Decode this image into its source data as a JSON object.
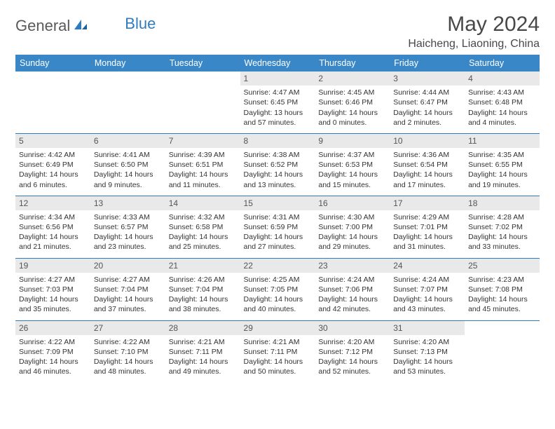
{
  "brand": {
    "part1": "General",
    "part2": "Blue"
  },
  "title": "May 2024",
  "location": "Haicheng, Liaoning, China",
  "colors": {
    "header_bg": "#3a87c8",
    "header_text": "#ffffff",
    "daynum_bg": "#e9e9e9",
    "row_border": "#2f7bc0",
    "logo_blue": "#2f7bc0",
    "body_text": "#333333"
  },
  "daysOfWeek": [
    "Sunday",
    "Monday",
    "Tuesday",
    "Wednesday",
    "Thursday",
    "Friday",
    "Saturday"
  ],
  "table_style": {
    "header_fontsize": 12.5,
    "cell_fontsize": 10.5,
    "columns": 7,
    "rows": 5
  },
  "weeks": [
    [
      {
        "n": "",
        "sr": "",
        "ss": "",
        "dl": ""
      },
      {
        "n": "",
        "sr": "",
        "ss": "",
        "dl": ""
      },
      {
        "n": "",
        "sr": "",
        "ss": "",
        "dl": ""
      },
      {
        "n": "1",
        "sr": "Sunrise: 4:47 AM",
        "ss": "Sunset: 6:45 PM",
        "dl": "Daylight: 13 hours and 57 minutes."
      },
      {
        "n": "2",
        "sr": "Sunrise: 4:45 AM",
        "ss": "Sunset: 6:46 PM",
        "dl": "Daylight: 14 hours and 0 minutes."
      },
      {
        "n": "3",
        "sr": "Sunrise: 4:44 AM",
        "ss": "Sunset: 6:47 PM",
        "dl": "Daylight: 14 hours and 2 minutes."
      },
      {
        "n": "4",
        "sr": "Sunrise: 4:43 AM",
        "ss": "Sunset: 6:48 PM",
        "dl": "Daylight: 14 hours and 4 minutes."
      }
    ],
    [
      {
        "n": "5",
        "sr": "Sunrise: 4:42 AM",
        "ss": "Sunset: 6:49 PM",
        "dl": "Daylight: 14 hours and 6 minutes."
      },
      {
        "n": "6",
        "sr": "Sunrise: 4:41 AM",
        "ss": "Sunset: 6:50 PM",
        "dl": "Daylight: 14 hours and 9 minutes."
      },
      {
        "n": "7",
        "sr": "Sunrise: 4:39 AM",
        "ss": "Sunset: 6:51 PM",
        "dl": "Daylight: 14 hours and 11 minutes."
      },
      {
        "n": "8",
        "sr": "Sunrise: 4:38 AM",
        "ss": "Sunset: 6:52 PM",
        "dl": "Daylight: 14 hours and 13 minutes."
      },
      {
        "n": "9",
        "sr": "Sunrise: 4:37 AM",
        "ss": "Sunset: 6:53 PM",
        "dl": "Daylight: 14 hours and 15 minutes."
      },
      {
        "n": "10",
        "sr": "Sunrise: 4:36 AM",
        "ss": "Sunset: 6:54 PM",
        "dl": "Daylight: 14 hours and 17 minutes."
      },
      {
        "n": "11",
        "sr": "Sunrise: 4:35 AM",
        "ss": "Sunset: 6:55 PM",
        "dl": "Daylight: 14 hours and 19 minutes."
      }
    ],
    [
      {
        "n": "12",
        "sr": "Sunrise: 4:34 AM",
        "ss": "Sunset: 6:56 PM",
        "dl": "Daylight: 14 hours and 21 minutes."
      },
      {
        "n": "13",
        "sr": "Sunrise: 4:33 AM",
        "ss": "Sunset: 6:57 PM",
        "dl": "Daylight: 14 hours and 23 minutes."
      },
      {
        "n": "14",
        "sr": "Sunrise: 4:32 AM",
        "ss": "Sunset: 6:58 PM",
        "dl": "Daylight: 14 hours and 25 minutes."
      },
      {
        "n": "15",
        "sr": "Sunrise: 4:31 AM",
        "ss": "Sunset: 6:59 PM",
        "dl": "Daylight: 14 hours and 27 minutes."
      },
      {
        "n": "16",
        "sr": "Sunrise: 4:30 AM",
        "ss": "Sunset: 7:00 PM",
        "dl": "Daylight: 14 hours and 29 minutes."
      },
      {
        "n": "17",
        "sr": "Sunrise: 4:29 AM",
        "ss": "Sunset: 7:01 PM",
        "dl": "Daylight: 14 hours and 31 minutes."
      },
      {
        "n": "18",
        "sr": "Sunrise: 4:28 AM",
        "ss": "Sunset: 7:02 PM",
        "dl": "Daylight: 14 hours and 33 minutes."
      }
    ],
    [
      {
        "n": "19",
        "sr": "Sunrise: 4:27 AM",
        "ss": "Sunset: 7:03 PM",
        "dl": "Daylight: 14 hours and 35 minutes."
      },
      {
        "n": "20",
        "sr": "Sunrise: 4:27 AM",
        "ss": "Sunset: 7:04 PM",
        "dl": "Daylight: 14 hours and 37 minutes."
      },
      {
        "n": "21",
        "sr": "Sunrise: 4:26 AM",
        "ss": "Sunset: 7:04 PM",
        "dl": "Daylight: 14 hours and 38 minutes."
      },
      {
        "n": "22",
        "sr": "Sunrise: 4:25 AM",
        "ss": "Sunset: 7:05 PM",
        "dl": "Daylight: 14 hours and 40 minutes."
      },
      {
        "n": "23",
        "sr": "Sunrise: 4:24 AM",
        "ss": "Sunset: 7:06 PM",
        "dl": "Daylight: 14 hours and 42 minutes."
      },
      {
        "n": "24",
        "sr": "Sunrise: 4:24 AM",
        "ss": "Sunset: 7:07 PM",
        "dl": "Daylight: 14 hours and 43 minutes."
      },
      {
        "n": "25",
        "sr": "Sunrise: 4:23 AM",
        "ss": "Sunset: 7:08 PM",
        "dl": "Daylight: 14 hours and 45 minutes."
      }
    ],
    [
      {
        "n": "26",
        "sr": "Sunrise: 4:22 AM",
        "ss": "Sunset: 7:09 PM",
        "dl": "Daylight: 14 hours and 46 minutes."
      },
      {
        "n": "27",
        "sr": "Sunrise: 4:22 AM",
        "ss": "Sunset: 7:10 PM",
        "dl": "Daylight: 14 hours and 48 minutes."
      },
      {
        "n": "28",
        "sr": "Sunrise: 4:21 AM",
        "ss": "Sunset: 7:11 PM",
        "dl": "Daylight: 14 hours and 49 minutes."
      },
      {
        "n": "29",
        "sr": "Sunrise: 4:21 AM",
        "ss": "Sunset: 7:11 PM",
        "dl": "Daylight: 14 hours and 50 minutes."
      },
      {
        "n": "30",
        "sr": "Sunrise: 4:20 AM",
        "ss": "Sunset: 7:12 PM",
        "dl": "Daylight: 14 hours and 52 minutes."
      },
      {
        "n": "31",
        "sr": "Sunrise: 4:20 AM",
        "ss": "Sunset: 7:13 PM",
        "dl": "Daylight: 14 hours and 53 minutes."
      },
      {
        "n": "",
        "sr": "",
        "ss": "",
        "dl": ""
      }
    ]
  ]
}
